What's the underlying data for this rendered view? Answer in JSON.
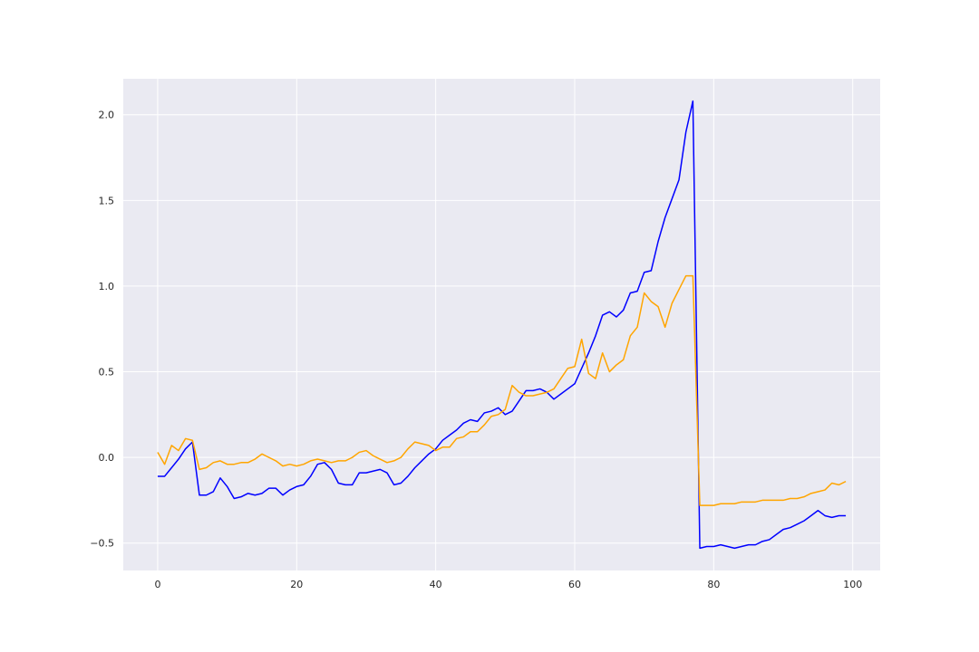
{
  "chart_data": {
    "type": "line",
    "title": "",
    "xlabel": "",
    "ylabel": "",
    "xlim": [
      -4.95,
      103.95
    ],
    "ylim": [
      -0.66,
      2.21
    ],
    "grid": true,
    "background": "#eaeaf2",
    "grid_color": "#ffffff",
    "x_ticks": [
      {
        "value": 0,
        "label": "0"
      },
      {
        "value": 20,
        "label": "20"
      },
      {
        "value": 40,
        "label": "40"
      },
      {
        "value": 60,
        "label": "60"
      },
      {
        "value": 80,
        "label": "80"
      },
      {
        "value": 100,
        "label": "100"
      }
    ],
    "y_ticks": [
      {
        "value": -0.5,
        "label": "−0.5"
      },
      {
        "value": 0.0,
        "label": "0.0"
      },
      {
        "value": 0.5,
        "label": "0.5"
      },
      {
        "value": 1.0,
        "label": "1.0"
      },
      {
        "value": 1.5,
        "label": "1.5"
      },
      {
        "value": 2.0,
        "label": "2.0"
      }
    ],
    "x": [
      0,
      1,
      2,
      3,
      4,
      5,
      6,
      7,
      8,
      9,
      10,
      11,
      12,
      13,
      14,
      15,
      16,
      17,
      18,
      19,
      20,
      21,
      22,
      23,
      24,
      25,
      26,
      27,
      28,
      29,
      30,
      31,
      32,
      33,
      34,
      35,
      36,
      37,
      38,
      39,
      40,
      41,
      42,
      43,
      44,
      45,
      46,
      47,
      48,
      49,
      50,
      51,
      52,
      53,
      54,
      55,
      56,
      57,
      58,
      59,
      60,
      61,
      62,
      63,
      64,
      65,
      66,
      67,
      68,
      69,
      70,
      71,
      72,
      73,
      74,
      75,
      76,
      77,
      78,
      79,
      80,
      81,
      82,
      83,
      84,
      85,
      86,
      87,
      88,
      89,
      90,
      91,
      92,
      93,
      94,
      95,
      96,
      97,
      98,
      99
    ],
    "series": [
      {
        "color": "#0000ff",
        "values": [
          -0.11,
          -0.11,
          -0.06,
          -0.01,
          0.05,
          0.09,
          -0.22,
          -0.22,
          -0.2,
          -0.12,
          -0.17,
          -0.24,
          -0.23,
          -0.21,
          -0.22,
          -0.21,
          -0.18,
          -0.18,
          -0.22,
          -0.19,
          -0.17,
          -0.16,
          -0.11,
          -0.04,
          -0.03,
          -0.07,
          -0.15,
          -0.16,
          -0.16,
          -0.09,
          -0.09,
          -0.08,
          -0.07,
          -0.09,
          -0.16,
          -0.15,
          -0.11,
          -0.06,
          -0.02,
          0.02,
          0.05,
          0.1,
          0.13,
          0.16,
          0.2,
          0.22,
          0.21,
          0.26,
          0.27,
          0.29,
          0.25,
          0.27,
          0.33,
          0.39,
          0.39,
          0.4,
          0.38,
          0.34,
          0.37,
          0.4,
          0.43,
          0.52,
          0.61,
          0.71,
          0.83,
          0.85,
          0.82,
          0.86,
          0.96,
          0.97,
          1.08,
          1.09,
          1.26,
          1.4,
          1.51,
          1.62,
          1.9,
          2.08,
          -0.53,
          -0.52,
          -0.52,
          -0.51,
          -0.52,
          -0.53,
          -0.52,
          -0.51,
          -0.51,
          -0.49,
          -0.48,
          -0.45,
          -0.42,
          -0.41,
          -0.39,
          -0.37,
          -0.34,
          -0.31,
          -0.34,
          -0.35,
          -0.34,
          -0.34
        ]
      },
      {
        "color": "#ffa500",
        "values": [
          0.03,
          -0.04,
          0.07,
          0.04,
          0.11,
          0.1,
          -0.07,
          -0.06,
          -0.03,
          -0.02,
          -0.04,
          -0.04,
          -0.03,
          -0.03,
          -0.01,
          0.02,
          0.0,
          -0.02,
          -0.05,
          -0.04,
          -0.05,
          -0.04,
          -0.02,
          -0.01,
          -0.02,
          -0.03,
          -0.02,
          -0.02,
          0.0,
          0.03,
          0.04,
          0.01,
          -0.01,
          -0.03,
          -0.02,
          0.0,
          0.05,
          0.09,
          0.08,
          0.07,
          0.04,
          0.06,
          0.06,
          0.11,
          0.12,
          0.15,
          0.15,
          0.19,
          0.24,
          0.25,
          0.28,
          0.42,
          0.38,
          0.36,
          0.36,
          0.37,
          0.38,
          0.4,
          0.46,
          0.52,
          0.53,
          0.69,
          0.49,
          0.46,
          0.61,
          0.5,
          0.54,
          0.57,
          0.71,
          0.76,
          0.96,
          0.91,
          0.88,
          0.76,
          0.9,
          0.98,
          1.06,
          1.06,
          -0.28,
          -0.28,
          -0.28,
          -0.27,
          -0.27,
          -0.27,
          -0.26,
          -0.26,
          -0.26,
          -0.25,
          -0.25,
          -0.25,
          -0.25,
          -0.24,
          -0.24,
          -0.23,
          -0.21,
          -0.2,
          -0.19,
          -0.15,
          -0.16,
          -0.14
        ]
      }
    ]
  }
}
